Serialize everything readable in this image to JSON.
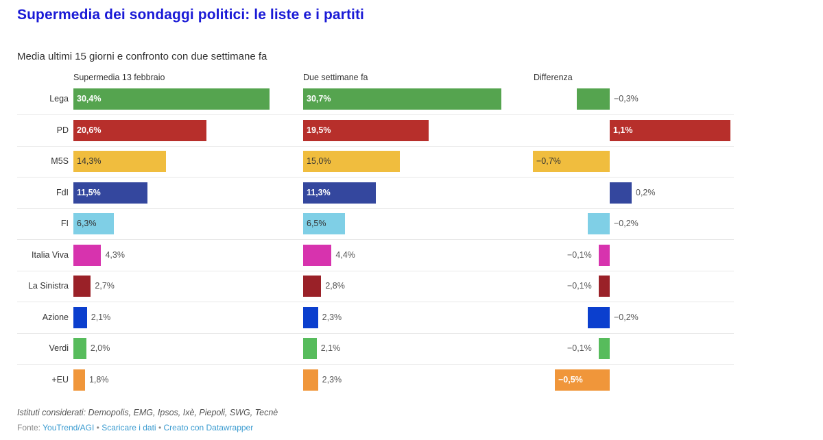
{
  "chart_data": {
    "type": "bar",
    "title": "Supermedia dei sondaggi politici: le liste e i partiti",
    "subtitle": "Media ultimi 15 giorni e confronto con due settimane fa",
    "categories": [
      "Lega",
      "PD",
      "M5S",
      "FdI",
      "FI",
      "Italia Viva",
      "La Sinistra",
      "Azione",
      "Verdi",
      "+EU"
    ],
    "colors": [
      "#55a44f",
      "#b72f2b",
      "#f0bd3e",
      "#34479e",
      "#7fcfe6",
      "#d733ae",
      "#9a2128",
      "#0b3fce",
      "#57bc5c",
      "#f0963a"
    ],
    "series": [
      {
        "name": "Supermedia 13 febbraio",
        "values": [
          30.4,
          20.6,
          14.3,
          11.5,
          6.3,
          4.3,
          2.7,
          2.1,
          2.0,
          1.8
        ],
        "labels": [
          "30,4%",
          "20,6%",
          "14,3%",
          "11,5%",
          "6,3%",
          "4,3%",
          "2,7%",
          "2,1%",
          "2,0%",
          "1,8%"
        ]
      },
      {
        "name": "Due settimane fa",
        "values": [
          30.7,
          19.5,
          15.0,
          11.3,
          6.5,
          4.4,
          2.8,
          2.3,
          2.1,
          2.3
        ],
        "labels": [
          "30,7%",
          "19,5%",
          "15,0%",
          "11,3%",
          "6,5%",
          "4,4%",
          "2,8%",
          "2,3%",
          "2,1%",
          "2,3%"
        ]
      },
      {
        "name": "Differenza",
        "values": [
          -0.3,
          1.1,
          -0.7,
          0.2,
          -0.2,
          -0.1,
          -0.1,
          -0.2,
          -0.1,
          -0.5
        ],
        "labels": [
          "−0,3%",
          "1,1%",
          "−0,7%",
          "0,2%",
          "−0,2%",
          "−0,1%",
          "−0,1%",
          "−0,2%",
          "−0,1%",
          "−0,5%"
        ]
      }
    ],
    "xlabel": "",
    "ylabel": "",
    "grid": false,
    "legend": "none"
  },
  "notes": "Istituti considerati: Demopolis, EMG, Ipsos, Ixè, Piepoli, SWG, Tecnè",
  "footer": {
    "source_prefix": "Fonte:",
    "source_link": "YouTrend/AGI",
    "separator": "•",
    "download_link": "Scaricare i dati",
    "made_with_link": "Creato con Datawrapper"
  }
}
